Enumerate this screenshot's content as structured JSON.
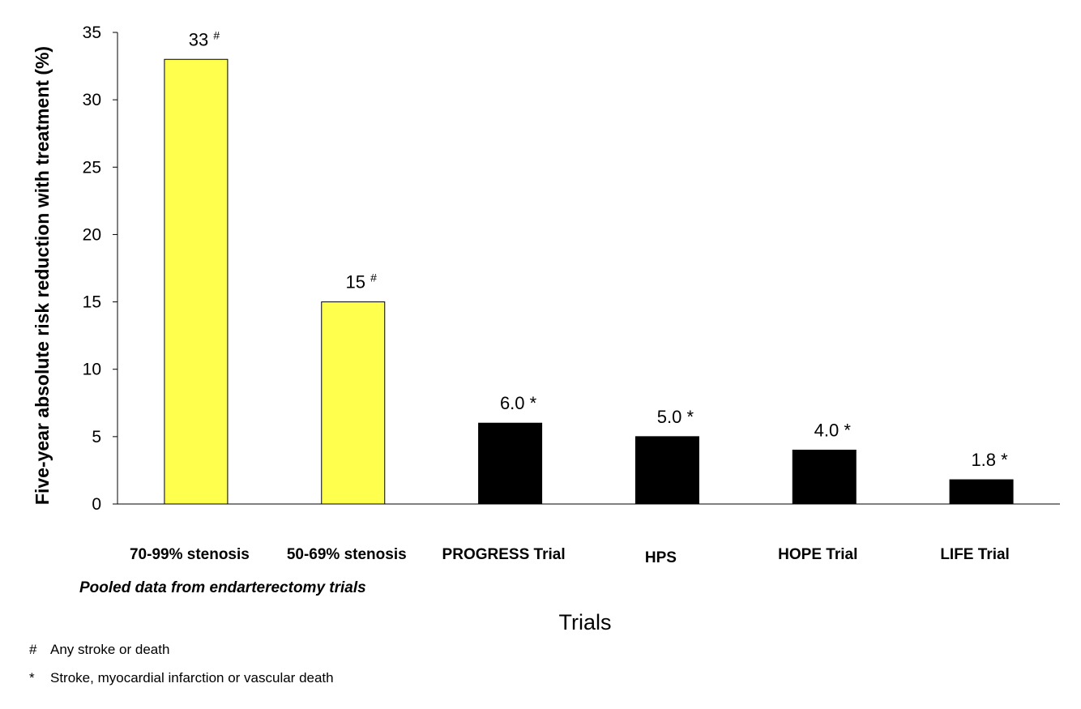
{
  "chart_data": {
    "type": "bar",
    "title": "",
    "xlabel": "Trials",
    "ylabel": "Five-year absolute risk reduction with treatment (%)",
    "ylim": [
      0,
      35
    ],
    "yticks": [
      0,
      5,
      10,
      15,
      20,
      25,
      30,
      35
    ],
    "grid": false,
    "categories": [
      "70-99% stenosis",
      "50-69% stenosis",
      "PROGRESS Trial",
      "HPS",
      "HOPE Trial",
      "LIFE Trial"
    ],
    "values": [
      33,
      15,
      6.0,
      5.0,
      4.0,
      1.8
    ],
    "value_labels": [
      "33",
      "15",
      "6.0",
      "5.0",
      "4.0",
      "1.8"
    ],
    "value_markers": [
      "#",
      "#",
      "*",
      "*",
      "*",
      "*"
    ],
    "bar_colors": [
      "#ffff4d",
      "#ffff4d",
      "#000000",
      "#000000",
      "#000000",
      "#000000"
    ],
    "group_note": "Pooled data from endarterectomy trials"
  },
  "footnotes": [
    {
      "symbol": "#",
      "text": "Any stroke or death"
    },
    {
      "symbol": "*",
      "text": "Stroke, myocardial infarction or vascular death"
    }
  ]
}
